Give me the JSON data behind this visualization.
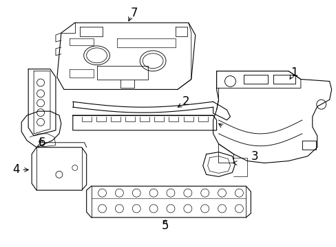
{
  "background_color": "#ffffff",
  "line_color": "#000000",
  "lw": 0.8,
  "figsize": [
    4.89,
    3.6
  ],
  "dpi": 100,
  "xlim": [
    0,
    489
  ],
  "ylim": [
    0,
    360
  ]
}
